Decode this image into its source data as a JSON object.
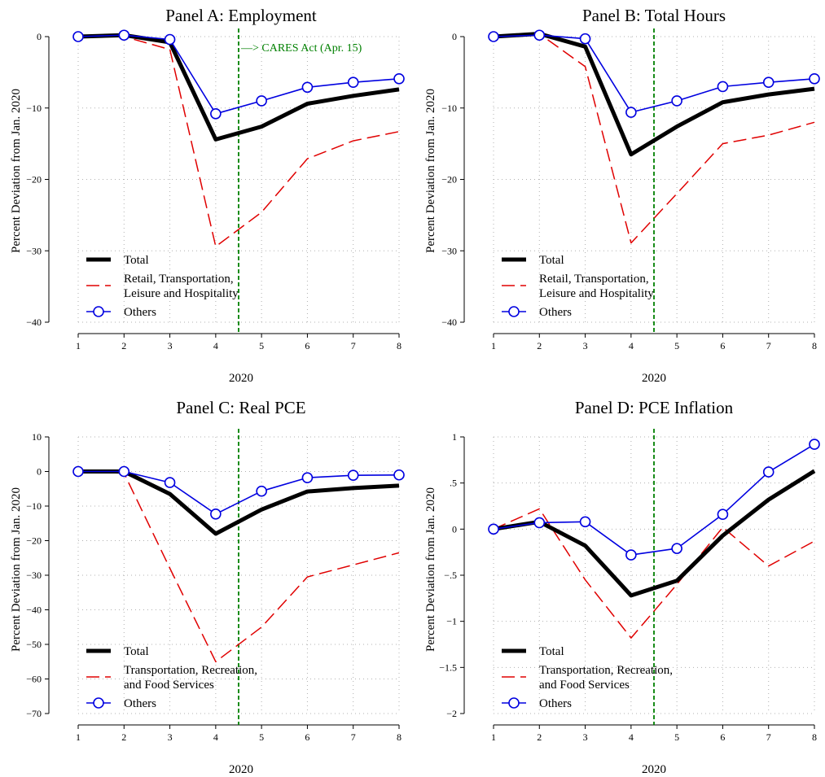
{
  "chart_data": [
    {
      "type": "line",
      "title": "Panel A: Employment",
      "xlabel": "2020",
      "ylabel": "Percent Deviation from Jan. 2020",
      "x": [
        1,
        2,
        3,
        4,
        5,
        6,
        7,
        8
      ],
      "xlim": [
        1,
        8
      ],
      "ylim": [
        -40,
        0
      ],
      "yticks": [
        0,
        -10,
        -20,
        -30,
        -40
      ],
      "ytick_labels": [
        "0",
        "−10",
        "−20",
        "−30",
        "−40"
      ],
      "grid": true,
      "legend_position": "bottom-left",
      "vline": {
        "x": 4.5,
        "color": "#008000",
        "style": "dashed"
      },
      "annotation": "—> CARES Act (Apr. 15)",
      "series": [
        {
          "name": "Total",
          "color": "#000000",
          "style": "solid-thick",
          "values": [
            0,
            0.2,
            -0.8,
            -14.4,
            -12.6,
            -9.4,
            -8.3,
            -7.4
          ]
        },
        {
          "name": "Retail, Transportation,",
          "name_line2": "Leisure and Hospitality",
          "color": "#e00000",
          "style": "dashed",
          "values": [
            0,
            0,
            -1.8,
            -29.4,
            -24.6,
            -17.1,
            -14.6,
            -13.3
          ]
        },
        {
          "name": "Others",
          "color": "#0000e0",
          "style": "solid-markers",
          "values": [
            0,
            0.2,
            -0.4,
            -10.8,
            -9.0,
            -7.1,
            -6.4,
            -5.9
          ]
        }
      ]
    },
    {
      "type": "line",
      "title": "Panel B: Total Hours",
      "xlabel": "2020",
      "ylabel": "Percent Deviation from Jan. 2020",
      "x": [
        1,
        2,
        3,
        4,
        5,
        6,
        7,
        8
      ],
      "xlim": [
        1,
        8
      ],
      "ylim": [
        -40,
        0
      ],
      "yticks": [
        0,
        -10,
        -20,
        -30,
        -40
      ],
      "ytick_labels": [
        "0",
        "−10",
        "−20",
        "−30",
        "−40"
      ],
      "grid": true,
      "legend_position": "bottom-left",
      "vline": {
        "x": 4.5,
        "color": "#008000",
        "style": "dashed"
      },
      "series": [
        {
          "name": "Total",
          "color": "#000000",
          "style": "solid-thick",
          "values": [
            0,
            0.4,
            -1.4,
            -16.5,
            -12.6,
            -9.2,
            -8.1,
            -7.3
          ]
        },
        {
          "name": "Retail, Transportation,",
          "name_line2": "Leisure and Hospitality",
          "color": "#e00000",
          "style": "dashed",
          "values": [
            0,
            0.4,
            -4.2,
            -28.9,
            -22.0,
            -15.0,
            -13.8,
            -12.0
          ]
        },
        {
          "name": "Others",
          "color": "#0000e0",
          "style": "solid-markers",
          "values": [
            0,
            0.2,
            -0.3,
            -10.6,
            -9.0,
            -7.0,
            -6.4,
            -5.9
          ]
        }
      ]
    },
    {
      "type": "line",
      "title": "Panel C: Real PCE",
      "xlabel": "2020",
      "ylabel": "Percent Deviation from Jan. 2020",
      "x": [
        1,
        2,
        3,
        4,
        5,
        6,
        7,
        8
      ],
      "xlim": [
        1,
        8
      ],
      "ylim": [
        -70,
        10
      ],
      "yticks": [
        10,
        0,
        -10,
        -20,
        -30,
        -40,
        -50,
        -60,
        -70
      ],
      "ytick_labels": [
        "10",
        "0",
        "−10",
        "−20",
        "−30",
        "−40",
        "−50",
        "−60",
        "−70"
      ],
      "grid": true,
      "legend_position": "bottom-left",
      "vline": {
        "x": 4.5,
        "color": "#008000",
        "style": "dashed"
      },
      "series": [
        {
          "name": "Total",
          "color": "#000000",
          "style": "solid-thick",
          "values": [
            0,
            0,
            -6.5,
            -18.0,
            -11.0,
            -5.8,
            -4.8,
            -4.1
          ]
        },
        {
          "name": "Transportation, Recreation,",
          "name_line2": "and Food Services",
          "color": "#e00000",
          "style": "dashed",
          "values": [
            0,
            -0.5,
            -28.0,
            -55.0,
            -45.0,
            -30.5,
            -27.0,
            -23.5
          ]
        },
        {
          "name": "Others",
          "color": "#0000e0",
          "style": "solid-markers",
          "values": [
            0,
            0,
            -3.2,
            -12.3,
            -5.7,
            -1.8,
            -1.1,
            -1.0
          ]
        }
      ]
    },
    {
      "type": "line",
      "title": "Panel D: PCE Inflation",
      "xlabel": "2020",
      "ylabel": "Percent Deviation from Jan. 2020",
      "x": [
        1,
        2,
        3,
        4,
        5,
        6,
        7,
        8
      ],
      "xlim": [
        1,
        8
      ],
      "ylim": [
        -2,
        1
      ],
      "yticks": [
        1,
        0.5,
        0,
        -0.5,
        -1,
        -1.5,
        -2
      ],
      "ytick_labels": [
        "1",
        ".5",
        "0",
        "−.5",
        "−1",
        "−1.5",
        "−2"
      ],
      "grid": true,
      "legend_position": "bottom-left",
      "vline": {
        "x": 4.5,
        "color": "#008000",
        "style": "dashed"
      },
      "series": [
        {
          "name": "Total",
          "color": "#000000",
          "style": "solid-thick",
          "values": [
            0,
            0.08,
            -0.18,
            -0.72,
            -0.56,
            -0.07,
            0.32,
            0.63
          ]
        },
        {
          "name": "Transportation, Recreation,",
          "name_line2": "and Food Services",
          "color": "#e00000",
          "style": "dashed",
          "values": [
            0,
            0.22,
            -0.55,
            -1.18,
            -0.6,
            0.02,
            -0.4,
            -0.13
          ]
        },
        {
          "name": "Others",
          "color": "#0000e0",
          "style": "solid-markers",
          "values": [
            0,
            0.07,
            0.08,
            -0.28,
            -0.21,
            0.16,
            0.62,
            0.92
          ]
        }
      ]
    }
  ]
}
